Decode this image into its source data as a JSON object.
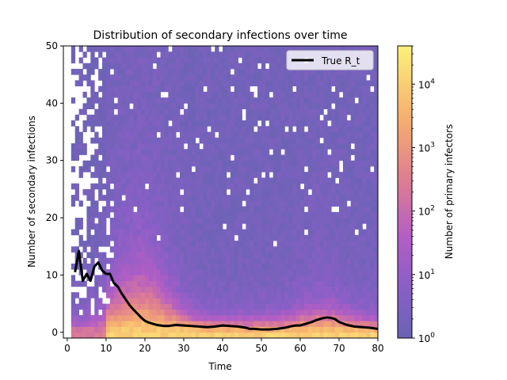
{
  "chart_data": {
    "type": "heatmap",
    "title": "Distribution of secondary infections over time",
    "xlabel": "Time",
    "ylabel": "Number of secondary infections",
    "xlim": [
      -1,
      80
    ],
    "ylim": [
      -1,
      50
    ],
    "xticks": [
      0,
      10,
      20,
      30,
      40,
      50,
      60,
      70,
      80
    ],
    "yticks": [
      0,
      10,
      20,
      30,
      40,
      50
    ],
    "grid": false,
    "colormap": "plasma",
    "colorbar": {
      "label": "Number of primary infectors",
      "scale": "log",
      "range": [
        1,
        40000
      ],
      "ticks": [
        {
          "value": 1,
          "base": "10",
          "exp": "0"
        },
        {
          "value": 10,
          "base": "10",
          "exp": "1"
        },
        {
          "value": 100,
          "base": "10",
          "exp": "2"
        },
        {
          "value": 1000,
          "base": "10",
          "exp": "3"
        },
        {
          "value": 10000,
          "base": "10",
          "exp": "4"
        }
      ]
    },
    "legend": {
      "position": "top-right",
      "entries": [
        "True R_t"
      ]
    },
    "series": [
      {
        "name": "True R_t",
        "color": "#000000",
        "x": [
          2,
          3,
          4,
          5,
          6,
          7,
          8,
          9,
          10,
          11,
          12,
          13,
          14,
          15,
          16,
          17,
          18,
          19,
          20,
          21,
          22,
          23,
          24,
          25,
          26,
          27,
          28,
          30,
          32,
          34,
          36,
          38,
          40,
          42,
          44,
          46,
          47,
          48,
          50,
          52,
          54,
          56,
          58,
          59,
          60,
          61,
          62,
          63,
          64,
          65,
          66,
          67,
          68,
          69,
          70,
          72,
          74,
          76,
          78,
          80
        ],
        "y": [
          10.5,
          14.2,
          9.0,
          10.2,
          9.0,
          11.5,
          12.2,
          10.8,
          10.2,
          10.2,
          8.6,
          8.0,
          6.8,
          5.8,
          4.8,
          4.0,
          3.3,
          2.6,
          2.0,
          1.7,
          1.5,
          1.3,
          1.2,
          1.1,
          1.1,
          1.2,
          1.3,
          1.2,
          1.1,
          1.0,
          0.9,
          1.0,
          1.2,
          1.1,
          1.0,
          0.8,
          0.6,
          0.6,
          0.5,
          0.5,
          0.6,
          0.8,
          1.1,
          1.2,
          1.2,
          1.4,
          1.6,
          1.8,
          2.1,
          2.3,
          2.5,
          2.6,
          2.5,
          2.3,
          1.8,
          1.3,
          1.0,
          0.9,
          0.8,
          0.6
        ]
      }
    ]
  }
}
